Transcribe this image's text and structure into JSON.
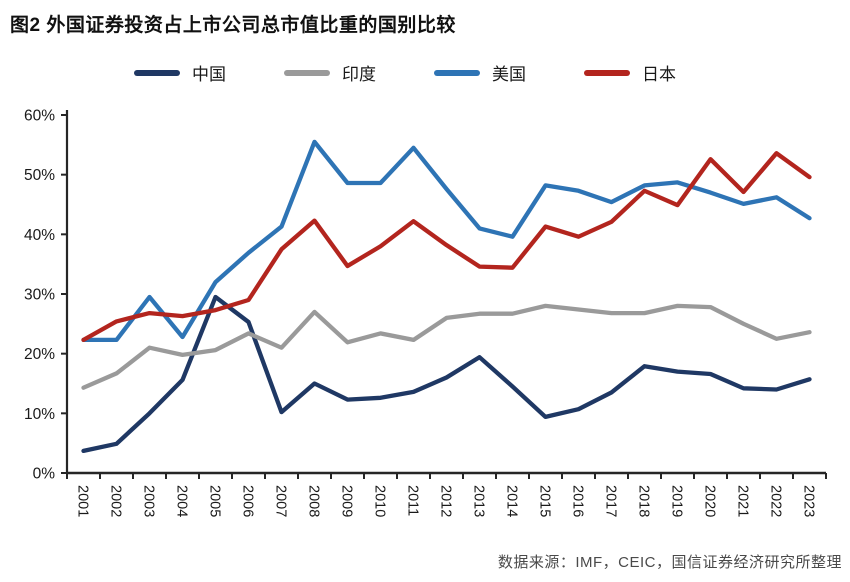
{
  "title": "图2 外国证券投资占上市公司总市值比重的国别比较",
  "source": "数据来源：IMF，CEIC，国信证券经济研究所整理",
  "colors": {
    "china": "#1f3864",
    "india": "#9a9a9a",
    "usa": "#2e74b5",
    "japan": "#b3251e",
    "axis": "#262626",
    "tick_label": "#1a1a1a",
    "source_text": "#4a4a4a"
  },
  "chart_data": {
    "type": "line",
    "title": "图2 外国证券投资占上市公司总市值比重的国别比较",
    "x": [
      2001,
      2002,
      2003,
      2004,
      2005,
      2006,
      2007,
      2008,
      2009,
      2010,
      2011,
      2012,
      2013,
      2014,
      2015,
      2016,
      2017,
      2018,
      2019,
      2020,
      2021,
      2022,
      2023
    ],
    "series": [
      {
        "name": "中国",
        "color": "#1f3864",
        "values": [
          3.7,
          4.9,
          10.0,
          15.6,
          29.5,
          25.3,
          10.2,
          15.0,
          12.3,
          12.6,
          13.6,
          16.0,
          19.4,
          14.5,
          9.4,
          10.7,
          13.5,
          17.9,
          17.0,
          16.6,
          14.2,
          14.0,
          15.7
        ]
      },
      {
        "name": "印度",
        "color": "#9a9a9a",
        "values": [
          14.3,
          16.7,
          21.0,
          19.8,
          20.6,
          23.4,
          21.0,
          27.0,
          21.9,
          23.4,
          22.3,
          26.0,
          26.7,
          26.7,
          28.0,
          27.4,
          26.8,
          26.8,
          28.0,
          27.8,
          25.0,
          22.5,
          23.6
        ]
      },
      {
        "name": "美国",
        "color": "#2e74b5",
        "values": [
          22.3,
          22.3,
          29.5,
          22.8,
          32.0,
          36.9,
          41.3,
          55.5,
          48.6,
          48.6,
          54.5,
          47.6,
          41.0,
          39.6,
          48.2,
          47.3,
          45.4,
          48.2,
          48.7,
          47.0,
          45.1,
          46.2,
          42.7
        ]
      },
      {
        "name": "日本",
        "color": "#b3251e",
        "values": [
          22.3,
          25.4,
          26.8,
          26.3,
          27.3,
          29.0,
          37.5,
          42.3,
          34.7,
          38.0,
          42.2,
          38.2,
          34.6,
          34.4,
          41.3,
          39.6,
          42.1,
          47.3,
          44.9,
          52.6,
          47.1,
          53.6,
          49.6
        ]
      }
    ],
    "ylabel": "",
    "xlabel": "",
    "ylim": [
      0,
      60
    ],
    "y_ticks": [
      "0%",
      "10%",
      "20%",
      "30%",
      "40%",
      "50%",
      "60%"
    ],
    "grid": false,
    "legend_position": "top"
  }
}
